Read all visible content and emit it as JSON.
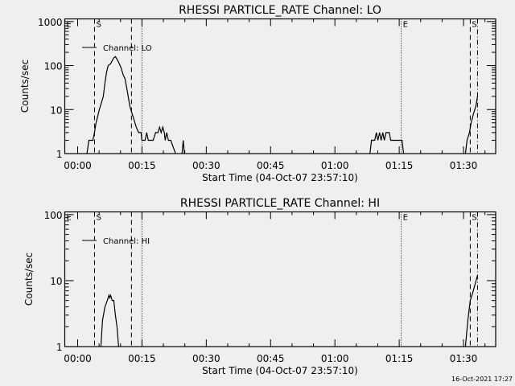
{
  "footer": "16-Oct-2021 17:27",
  "chart_data": [
    {
      "type": "line",
      "title": "RHESSI PARTICLE_RATE Channel: LO",
      "xlabel": "Start Time (04-Oct-07 23:57:10)",
      "ylabel": "Counts/sec",
      "yscale": "log",
      "ylim": [
        1,
        1150
      ],
      "xlim": [
        "-00:03:00",
        "01:37:30"
      ],
      "x_ticks": [
        "00:00",
        "00:15",
        "00:30",
        "00:45",
        "01:00",
        "01:15",
        "01:30"
      ],
      "y_ticks": [
        "1",
        "10",
        "100",
        "1000"
      ],
      "legend": {
        "label": "Channel: LO",
        "placement": "top-left"
      },
      "markers": [
        {
          "time": "00:03:56",
          "style": "dashed",
          "label": "S"
        },
        {
          "time": "00:12:33",
          "style": "dashed",
          "label": ""
        },
        {
          "time": "00:15:00",
          "style": "dotted",
          "label": ""
        },
        {
          "time": "01:15:28",
          "style": "dotted",
          "label": "E"
        },
        {
          "time": "01:31:34",
          "style": "dashed",
          "label": "S"
        },
        {
          "time": "01:33:16",
          "style": "dashdot",
          "label": ""
        },
        {
          "time": "-00:03:00",
          "style": "none",
          "label": "E"
        }
      ],
      "segments": [
        [
          [
            "00:02:11",
            1
          ],
          [
            "00:02:37",
            2
          ],
          [
            "00:03:33",
            2
          ],
          [
            "00:03:56",
            3
          ],
          [
            "00:04:18",
            5
          ],
          [
            "00:04:41",
            7
          ],
          [
            "00:05:03",
            10
          ],
          [
            "00:05:37",
            15
          ],
          [
            "00:05:59",
            20
          ],
          [
            "00:06:22",
            40
          ],
          [
            "00:06:44",
            70
          ],
          [
            "00:07:07",
            100
          ],
          [
            "00:07:41",
            110
          ],
          [
            "00:08:26",
            150
          ],
          [
            "00:08:48",
            160
          ],
          [
            "00:09:22",
            130
          ],
          [
            "00:10:07",
            90
          ],
          [
            "00:10:40",
            60
          ],
          [
            "00:11:03",
            50
          ],
          [
            "00:11:37",
            25
          ],
          [
            "00:12:10",
            12
          ],
          [
            "00:12:33",
            9
          ],
          [
            "00:13:07",
            6
          ],
          [
            "00:13:40",
            4
          ],
          [
            "00:14:14",
            3
          ],
          [
            "00:14:48",
            3
          ],
          [
            "00:14:59",
            2
          ],
          [
            "00:15:44",
            2
          ],
          [
            "00:16:06",
            3
          ],
          [
            "00:16:29",
            2
          ],
          [
            "00:17:36",
            2
          ],
          [
            "00:18:10",
            3
          ],
          [
            "00:18:44",
            3
          ],
          [
            "00:19:06",
            4
          ],
          [
            "00:19:29",
            3
          ],
          [
            "00:19:51",
            4
          ],
          [
            "00:20:13",
            3
          ],
          [
            "00:20:25",
            2
          ],
          [
            "00:20:47",
            3
          ],
          [
            "00:21:10",
            2
          ],
          [
            "00:21:43",
            2
          ],
          [
            "00:22:51",
            1
          ]
        ],
        [
          [
            "00:24:21",
            1
          ],
          [
            "00:24:38",
            2
          ],
          [
            "00:24:54",
            1
          ]
        ],
        [
          [
            "01:08:10",
            1
          ],
          [
            "01:08:32",
            2
          ],
          [
            "01:09:17",
            2
          ],
          [
            "01:09:40",
            3
          ],
          [
            "01:10:02",
            2
          ],
          [
            "01:10:25",
            3
          ],
          [
            "01:10:47",
            2
          ],
          [
            "01:11:10",
            3
          ],
          [
            "01:11:32",
            2
          ],
          [
            "01:11:55",
            3
          ],
          [
            "01:12:40",
            3
          ],
          [
            "01:13:02",
            2
          ],
          [
            "01:15:39",
            2
          ],
          [
            "01:16:02",
            1
          ]
        ],
        [
          [
            "01:30:27",
            1
          ],
          [
            "01:30:49",
            2
          ],
          [
            "01:31:23",
            3
          ],
          [
            "01:31:46",
            5
          ],
          [
            "01:32:19",
            8
          ],
          [
            "01:32:53",
            12
          ],
          [
            "01:33:16",
            20
          ]
        ]
      ]
    },
    {
      "type": "line",
      "title": "RHESSI PARTICLE_RATE Channel: HI",
      "xlabel": "Start Time (04-Oct-07 23:57:10)",
      "ylabel": "Counts/sec",
      "yscale": "log",
      "ylim": [
        1,
        110
      ],
      "xlim": [
        "-00:03:00",
        "01:37:30"
      ],
      "x_ticks": [
        "00:00",
        "00:15",
        "00:30",
        "00:45",
        "01:00",
        "01:15",
        "01:30"
      ],
      "y_ticks": [
        "1",
        "10",
        "100"
      ],
      "legend": {
        "label": "Channel: HI",
        "placement": "top-left"
      },
      "markers": [
        {
          "time": "00:03:56",
          "style": "dashed",
          "label": "S"
        },
        {
          "time": "00:12:33",
          "style": "dashed",
          "label": ""
        },
        {
          "time": "00:15:00",
          "style": "dotted",
          "label": ""
        },
        {
          "time": "01:15:28",
          "style": "dotted",
          "label": "E"
        },
        {
          "time": "01:31:34",
          "style": "dashed",
          "label": "S"
        },
        {
          "time": "01:33:16",
          "style": "dashdot",
          "label": ""
        },
        {
          "time": "-00:03:00",
          "style": "none",
          "label": "E"
        }
      ],
      "segments": [
        [
          [
            "00:05:26",
            1
          ],
          [
            "00:05:48",
            2.5
          ],
          [
            "00:06:22",
            4
          ],
          [
            "00:06:56",
            5
          ],
          [
            "00:07:18",
            6
          ],
          [
            "00:07:29",
            5.5
          ],
          [
            "00:07:41",
            6
          ],
          [
            "00:08:03",
            5
          ],
          [
            "00:08:26",
            5
          ],
          [
            "00:08:48",
            3
          ],
          [
            "00:09:11",
            2
          ],
          [
            "00:09:33",
            1
          ]
        ],
        [
          [
            "01:30:27",
            1
          ],
          [
            "01:31:00",
            2.5
          ],
          [
            "01:31:34",
            5
          ],
          [
            "01:32:08",
            6.5
          ],
          [
            "01:33:16",
            12
          ]
        ]
      ]
    }
  ]
}
